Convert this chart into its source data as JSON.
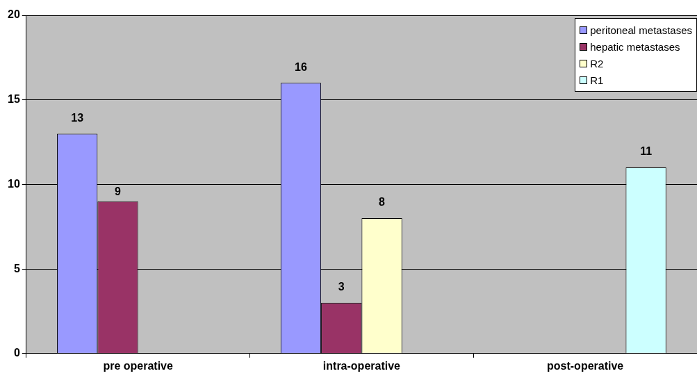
{
  "chart_data": {
    "type": "bar",
    "categories": [
      "pre operative",
      "intra-operative",
      "post-operative"
    ],
    "series": [
      {
        "name": "peritoneal metastases",
        "color": "#9999ff",
        "values": [
          13,
          16,
          null
        ]
      },
      {
        "name": "hepatic metastases",
        "color": "#993366",
        "values": [
          9,
          3,
          null
        ]
      },
      {
        "name": "R2",
        "color": "#ffffcc",
        "values": [
          null,
          8,
          null
        ]
      },
      {
        "name": "R1",
        "color": "#ccffff",
        "values": [
          null,
          null,
          11
        ]
      }
    ],
    "ylim": [
      0,
      20
    ],
    "yticks": [
      0,
      5,
      10,
      15,
      20
    ],
    "grid": "y",
    "legend": "top right",
    "data_labels": true
  }
}
